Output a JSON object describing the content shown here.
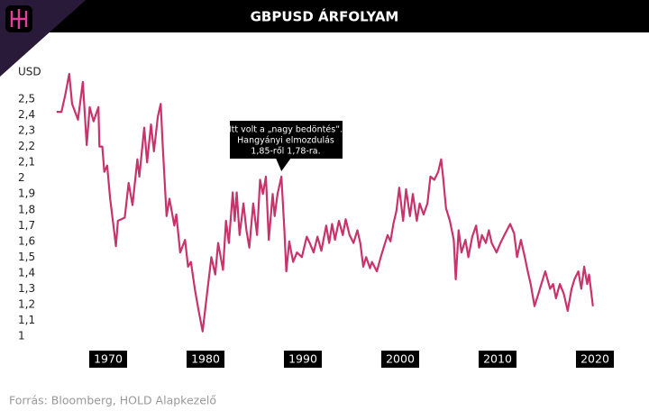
{
  "chart_data": {
    "type": "line",
    "title": "GBPUSD ÁRFOLYAM",
    "y_label": "USD",
    "source": "Forrás: Bloomberg, HOLD Alapkezelő",
    "annotation": [
      "Itt volt a „nagy bedöntés”.",
      "Hangyányi elmozdulás",
      "1,85-ről 1,78-ra."
    ],
    "annotation_x": 1987.8,
    "annotation_y": 2.01,
    "color": "#c8336b",
    "x": [
      1964.7,
      1965.2,
      1965.6,
      1966,
      1966.3,
      1966.9,
      1967.4,
      1967.8,
      1968.1,
      1968.5,
      1969,
      1969.1,
      1969.4,
      1969.6,
      1969.9,
      1970.2,
      1970.6,
      1970.8,
      1971,
      1971.7,
      1972.1,
      1972.5,
      1973,
      1973.2,
      1973.7,
      1974,
      1974.4,
      1974.7,
      1975.1,
      1975.4,
      1975.6,
      1976,
      1976.3,
      1976.8,
      1977,
      1977.4,
      1977.9,
      1978.2,
      1978.5,
      1978.9,
      1979.3,
      1979.7,
      1980.1,
      1980.6,
      1981,
      1981.3,
      1981.8,
      1982.1,
      1982.4,
      1982.8,
      1983,
      1983.2,
      1983.5,
      1983.9,
      1984.2,
      1984.5,
      1984.9,
      1985.3,
      1985.6,
      1985.9,
      1986.2,
      1986.5,
      1986.9,
      1987.1,
      1987.4,
      1987.8,
      1988.1,
      1988.3,
      1988.6,
      1989,
      1989.4,
      1989.9,
      1990.4,
      1990.7,
      1991.1,
      1991.5,
      1991.9,
      1992.4,
      1992.7,
      1993,
      1993.3,
      1993.7,
      1994.1,
      1994.4,
      1994.8,
      1995.2,
      1995.6,
      1995.9,
      1996.2,
      1996.5,
      1996.9,
      1997.1,
      1997.6,
      1998,
      1998.3,
      1998.7,
      1999,
      1999.3,
      1999.6,
      1999.9,
      2000.3,
      2000.6,
      2001,
      2001.3,
      2001.7,
      2002,
      2002.4,
      2002.8,
      2003.1,
      2003.5,
      2003.9,
      2004.2,
      2004.4,
      2004.7,
      2005.1,
      2005.5,
      2005.7,
      2006,
      2006.3,
      2006.7,
      2007,
      2007.4,
      2007.8,
      2008.1,
      2008.4,
      2008.8,
      2009.1,
      2009.4,
      2009.9,
      2010.3,
      2010.7,
      2011.3,
      2011.7,
      2012,
      2012.4,
      2012.8,
      2013.1,
      2013.4,
      2013.8,
      2014.2,
      2014.5,
      2014.9,
      2015.4,
      2015.7,
      2016,
      2016.4,
      2016.8,
      2017.2,
      2017.6,
      2017.9,
      2018.3,
      2018.6,
      2018.9,
      2019.2,
      2019.4,
      2019.8
    ],
    "values": [
      2.42,
      2.42,
      2.53,
      2.66,
      2.47,
      2.37,
      2.61,
      2.21,
      2.45,
      2.36,
      2.45,
      2.2,
      2.2,
      2.04,
      2.08,
      1.87,
      1.67,
      1.57,
      1.73,
      1.75,
      1.97,
      1.83,
      2.12,
      2.01,
      2.32,
      2.1,
      2.34,
      2.17,
      2.39,
      2.47,
      2.21,
      1.76,
      1.87,
      1.7,
      1.77,
      1.53,
      1.61,
      1.44,
      1.47,
      1.3,
      1.16,
      1.03,
      1.24,
      1.5,
      1.39,
      1.59,
      1.42,
      1.73,
      1.59,
      1.91,
      1.73,
      1.91,
      1.64,
      1.84,
      1.67,
      1.56,
      1.84,
      1.64,
      1.99,
      1.9,
      2.01,
      1.61,
      1.9,
      1.76,
      1.9,
      2.01,
      1.67,
      1.41,
      1.6,
      1.47,
      1.53,
      1.5,
      1.63,
      1.59,
      1.53,
      1.63,
      1.54,
      1.7,
      1.59,
      1.71,
      1.61,
      1.73,
      1.64,
      1.74,
      1.64,
      1.59,
      1.67,
      1.59,
      1.44,
      1.5,
      1.43,
      1.47,
      1.41,
      1.5,
      1.56,
      1.64,
      1.6,
      1.71,
      1.79,
      1.94,
      1.73,
      1.93,
      1.76,
      1.9,
      1.73,
      1.84,
      1.77,
      1.84,
      2.01,
      1.99,
      2.04,
      2.12,
      2.01,
      1.81,
      1.73,
      1.61,
      1.36,
      1.67,
      1.53,
      1.61,
      1.5,
      1.63,
      1.7,
      1.56,
      1.64,
      1.59,
      1.67,
      1.59,
      1.53,
      1.59,
      1.64,
      1.71,
      1.65,
      1.5,
      1.61,
      1.5,
      1.41,
      1.33,
      1.19,
      1.27,
      1.33,
      1.41,
      1.3,
      1.33,
      1.24,
      1.33,
      1.27,
      1.16,
      1.3,
      1.36,
      1.41,
      1.3,
      1.44,
      1.33,
      1.39,
      1.19
    ],
    "xlim": [
      1964,
      2021
    ],
    "xticks": [
      1970,
      1980,
      1990,
      2000,
      2010,
      2020
    ],
    "ylim": [
      0.95,
      2.7
    ],
    "yticks": [
      {
        "value": 2.5,
        "label": "2,5"
      },
      {
        "value": 2.4,
        "label": "2,4"
      },
      {
        "value": 2.3,
        "label": "2,3"
      },
      {
        "value": 2.2,
        "label": "2,2"
      },
      {
        "value": 2.1,
        "label": "2,1"
      },
      2,
      {
        "value": 1.9,
        "label": "1,9"
      },
      {
        "value": 1.8,
        "label": "1,8"
      },
      {
        "value": 1.7,
        "label": "1,7"
      },
      {
        "value": 1.6,
        "label": "1,6"
      },
      {
        "value": 1.5,
        "label": "1,5"
      },
      {
        "value": 1.4,
        "label": "1,4"
      },
      {
        "value": 1.3,
        "label": "1,3"
      },
      {
        "value": 1.2,
        "label": "1,2"
      },
      {
        "value": 1.1,
        "label": "1,1"
      },
      1
    ],
    "grid": false
  }
}
